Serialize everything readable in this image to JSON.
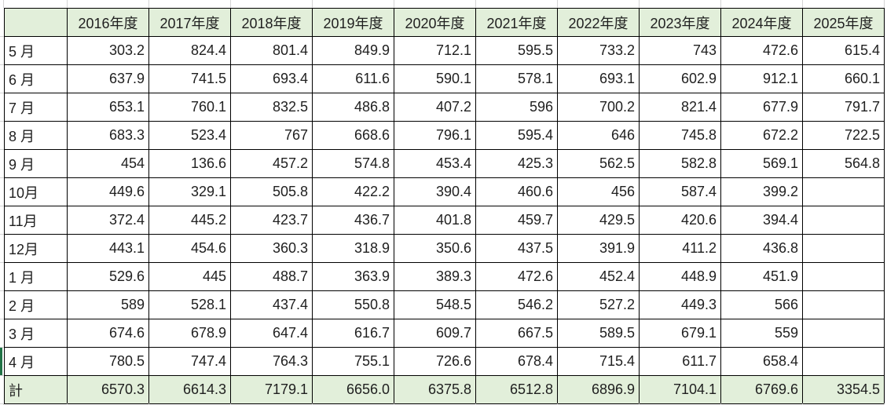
{
  "sheet": {
    "corner_label": "",
    "years": [
      "2016年度",
      "2017年度",
      "2018年度",
      "2019年度",
      "2020年度",
      "2021年度",
      "2022年度",
      "2023年度",
      "2024年度",
      "2025年度"
    ],
    "rows": [
      {
        "label": "5 月",
        "values": [
          "303.2",
          "824.4",
          "801.4",
          "849.9",
          "712.1",
          "595.5",
          "733.2",
          "743",
          "472.6",
          "615.4"
        ]
      },
      {
        "label": "6 月",
        "values": [
          "637.9",
          "741.5",
          "693.4",
          "611.6",
          "590.1",
          "578.1",
          "693.1",
          "602.9",
          "912.1",
          "660.1"
        ]
      },
      {
        "label": "7 月",
        "values": [
          "653.1",
          "760.1",
          "832.5",
          "486.8",
          "407.2",
          "596",
          "700.2",
          "821.4",
          "677.9",
          "791.7"
        ]
      },
      {
        "label": "8 月",
        "values": [
          "683.3",
          "523.4",
          "767",
          "668.6",
          "796.1",
          "595.4",
          "646",
          "745.8",
          "672.2",
          "722.5"
        ]
      },
      {
        "label": "9 月",
        "values": [
          "454",
          "136.6",
          "457.2",
          "574.8",
          "453.4",
          "425.3",
          "562.5",
          "582.8",
          "569.1",
          "564.8"
        ]
      },
      {
        "label": "10月",
        "values": [
          "449.6",
          "329.1",
          "505.8",
          "422.2",
          "390.4",
          "460.6",
          "456",
          "587.4",
          "399.2",
          ""
        ]
      },
      {
        "label": "11月",
        "values": [
          "372.4",
          "445.2",
          "423.7",
          "436.7",
          "401.8",
          "459.7",
          "429.5",
          "420.6",
          "394.4",
          ""
        ]
      },
      {
        "label": "12月",
        "values": [
          "443.1",
          "454.6",
          "360.3",
          "318.9",
          "350.6",
          "437.5",
          "391.9",
          "411.2",
          "436.8",
          ""
        ]
      },
      {
        "label": "1 月",
        "values": [
          "529.6",
          "445",
          "488.7",
          "363.9",
          "389.3",
          "472.6",
          "452.4",
          "448.9",
          "451.9",
          ""
        ]
      },
      {
        "label": "2 月",
        "values": [
          "589",
          "528.1",
          "437.4",
          "550.8",
          "548.5",
          "546.2",
          "527.2",
          "449.3",
          "566",
          ""
        ]
      },
      {
        "label": "3 月",
        "values": [
          "674.6",
          "678.9",
          "647.4",
          "616.7",
          "609.7",
          "667.5",
          "589.5",
          "679.1",
          "559",
          ""
        ]
      },
      {
        "label": "4 月",
        "values": [
          "780.5",
          "747.4",
          "764.3",
          "755.1",
          "726.6",
          "678.4",
          "715.4",
          "611.7",
          "658.4",
          ""
        ]
      }
    ],
    "total_row": {
      "label": "計",
      "values": [
        "6570.3",
        "6614.3",
        "7179.1",
        "6656.0",
        "6375.8",
        "6512.8",
        "6896.9",
        "7104.1",
        "6769.6",
        "3354.5"
      ]
    }
  },
  "colors": {
    "header_fill": "#e2efda",
    "total_fill": "#e2efda",
    "cell_border": "#000000",
    "sheet_gridline": "#d4d4d4",
    "selection_accent": "#217346",
    "text": "#1f1f1f"
  }
}
